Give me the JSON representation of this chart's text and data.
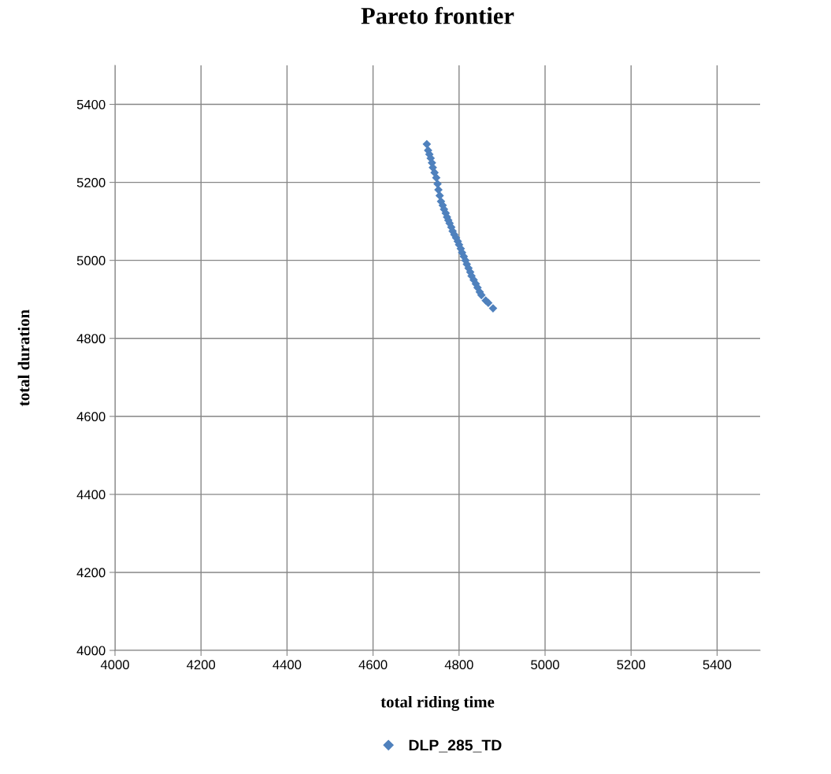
{
  "chart_data": {
    "type": "scatter",
    "title": "Pareto frontier",
    "xlabel": "total riding time",
    "ylabel": "total duration",
    "series": [
      {
        "name": "DLP_285_TD",
        "color": "#4f81bd",
        "x": [
          4725,
          4728,
          4731,
          4734,
          4737,
          4739,
          4743,
          4747,
          4750,
          4752,
          4755,
          4758,
          4762,
          4765,
          4769,
          4772,
          4775,
          4778,
          4782,
          4785,
          4789,
          4793,
          4797,
          4800,
          4804,
          4807,
          4811,
          4815,
          4818,
          4822,
          4826,
          4829,
          4834,
          4839,
          4843,
          4848,
          4852,
          4862,
          4868,
          4879
        ],
        "values": [
          5298,
          5282,
          5272,
          5262,
          5250,
          5238,
          5225,
          5212,
          5196,
          5181,
          5166,
          5151,
          5141,
          5131,
          5121,
          5111,
          5103,
          5095,
          5085,
          5075,
          5066,
          5058,
          5049,
          5040,
          5030,
          5020,
          5010,
          5000,
          4990,
          4980,
          4970,
          4960,
          4950,
          4940,
          4930,
          4919,
          4911,
          4897,
          4891,
          4877
        ]
      }
    ],
    "xlim": [
      4000,
      5500
    ],
    "ylim": [
      4000,
      5500
    ],
    "xticks": [
      4000,
      4200,
      4400,
      4600,
      4800,
      5000,
      5200,
      5400
    ],
    "yticks": [
      4000,
      4200,
      4400,
      4600,
      4800,
      5000,
      5200,
      5400
    ],
    "grid": true,
    "legend": "bottom",
    "marker": "diamond"
  }
}
